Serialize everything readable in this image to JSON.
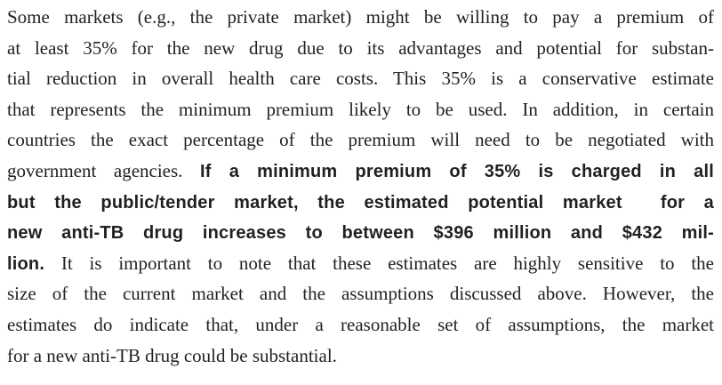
{
  "paragraph": {
    "lines": [
      [
        {
          "text": "Some markets (e.g., the private market) might be willing to pay a premium of"
        }
      ],
      [
        {
          "text": "at least 35% for the new drug due to its advantages and potential for substan-"
        }
      ],
      [
        {
          "text": "tial reduction in overall health care costs. This 35% is a conservative estimate"
        }
      ],
      [
        {
          "text": "that represents the minimum premium likely to be used. In addition, in certain"
        }
      ],
      [
        {
          "text": "countries the exact percentage of the premium will need to be negotiated with"
        }
      ],
      [
        {
          "text": "government agencies. "
        },
        {
          "text": "If a minimum premium of 35% is charged in all",
          "style": "bold"
        }
      ],
      [
        {
          "text": "but the public/tender market, the estimated potential market  for a",
          "style": "bold"
        }
      ],
      [
        {
          "text": "new anti-TB drug increases to between $396 million and $432 mil-",
          "style": "bold"
        }
      ],
      [
        {
          "text": "lion.",
          "style": "bold"
        },
        {
          "text": " It is important to note that these estimates are highly sensitive to the"
        }
      ],
      [
        {
          "text": "size of the current market and the assumptions discussed above. However, the"
        }
      ],
      [
        {
          "text": "estimates do indicate that, under a reasonable set of assumptions, the market"
        }
      ],
      [
        {
          "text": "for a new anti-TB drug could be substantial."
        }
      ]
    ]
  }
}
